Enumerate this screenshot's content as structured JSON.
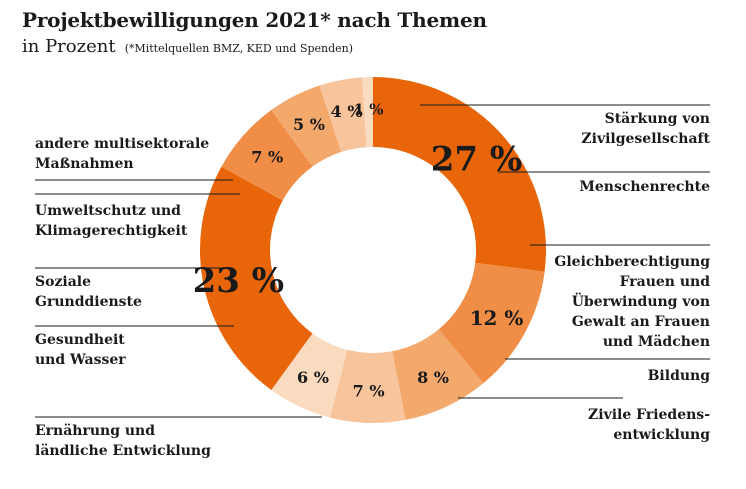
{
  "header": {
    "title": "Projektbewilligungen 2021* nach Themen",
    "subtitle": "in Prozent",
    "note": "(*Mittelquellen BMZ, KED und Spenden)"
  },
  "colors": {
    "darkest": "#e8650a",
    "medium": "#f08d47",
    "light": "#f3a86c",
    "lighter": "#f7c49c",
    "lightest": "#fadbc0"
  },
  "chart_data": {
    "type": "pie",
    "donut": true,
    "title": "Projektbewilligungen 2021* nach Themen",
    "unit": "Prozent",
    "slices": [
      {
        "label": [
          "Stärkung von",
          "Zivilgesellschaft"
        ],
        "value": 27,
        "display": "27 %",
        "color": "#e8650a"
      },
      {
        "label": [
          "Menschenrechte"
        ],
        "value": 12,
        "display": "12 %",
        "color": "#f08d47"
      },
      {
        "label": [
          "Gleichberechtigung",
          "Frauen und",
          "Überwindung von",
          "Gewalt an Frauen",
          "und Mädchen"
        ],
        "value": 8,
        "display": "8 %",
        "color": "#f3a86c"
      },
      {
        "label": [
          "Bildung"
        ],
        "value": 7,
        "display": "7 %",
        "color": "#f7c49c"
      },
      {
        "label": [
          "Zivile Friedens-",
          "entwicklung"
        ],
        "value": 6,
        "display": "6 %",
        "color": "#fadbc0"
      },
      {
        "label": [
          "Ernährung und",
          "ländliche Entwicklung"
        ],
        "value": 23,
        "display": "23 %",
        "color": "#e8650a"
      },
      {
        "label": [
          "Gesundheit",
          "und Wasser"
        ],
        "value": 7,
        "display": "7 %",
        "color": "#f08d47"
      },
      {
        "label": [
          "Soziale",
          "Grunddienste"
        ],
        "value": 5,
        "display": "5 %",
        "color": "#f3a86c"
      },
      {
        "label": [
          "Umweltschutz und",
          "Klimagerechtigkeit"
        ],
        "value": 4,
        "display": "4 %",
        "color": "#f7c49c"
      },
      {
        "label": [
          "andere multisektorale",
          "Maßnahmen"
        ],
        "value": 1,
        "display": "1 %",
        "color": "#fadbc0"
      }
    ]
  }
}
